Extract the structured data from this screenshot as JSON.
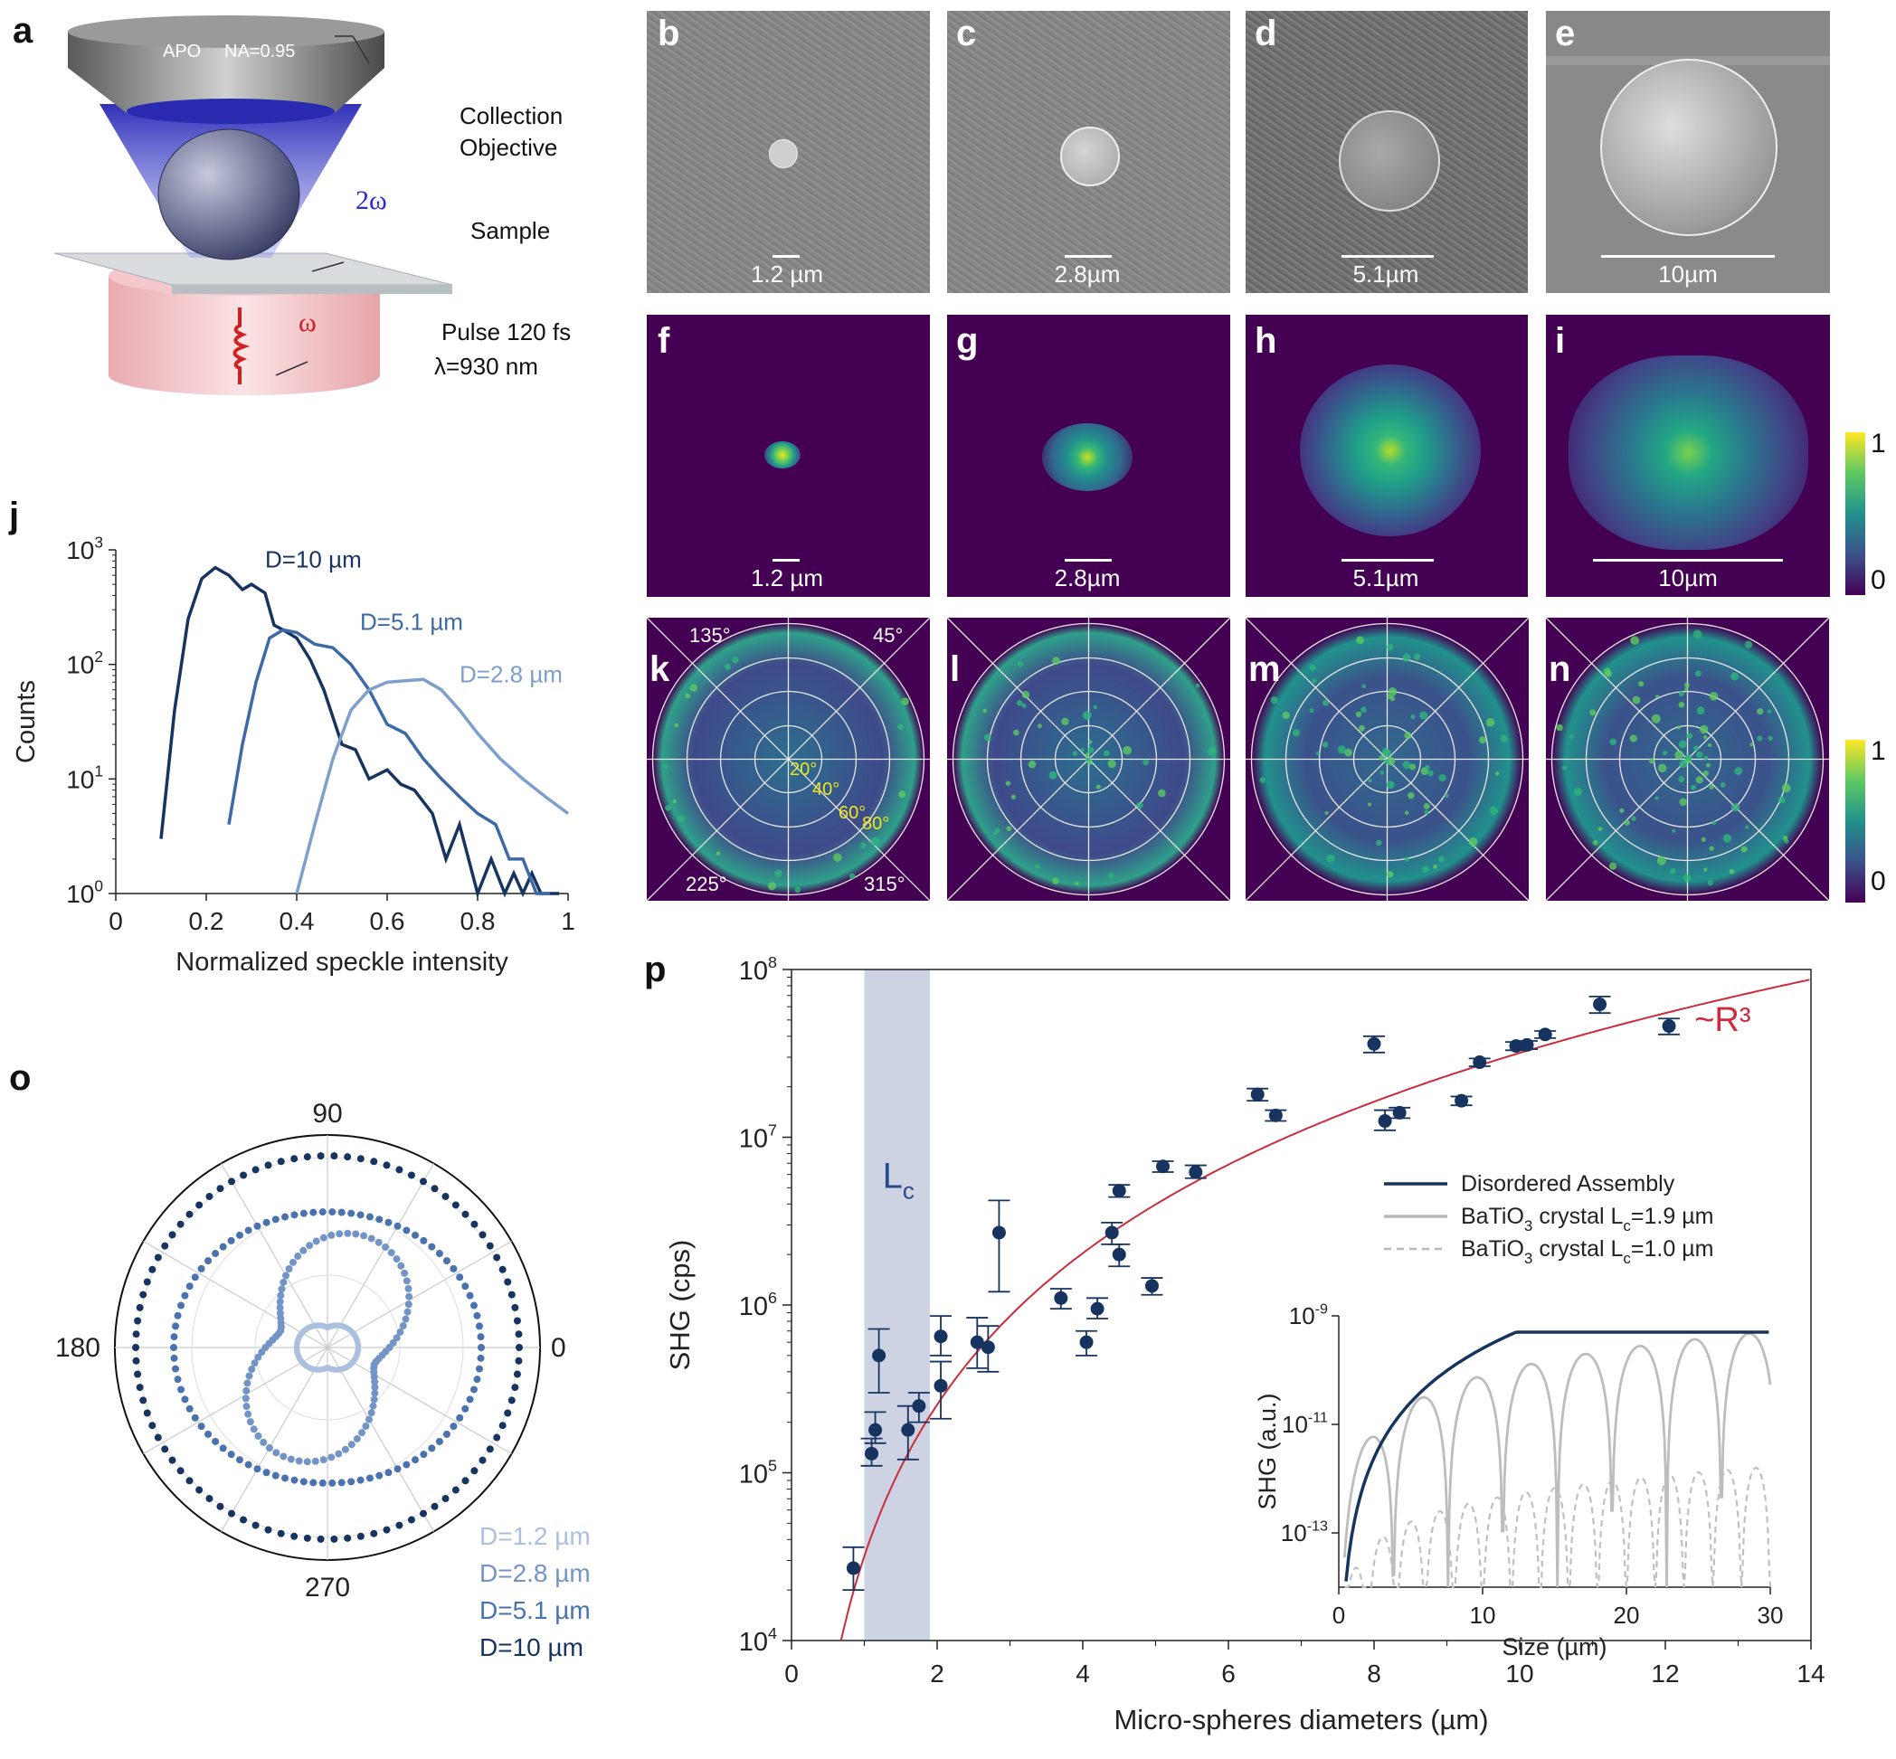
{
  "panel_letters": {
    "a": "a",
    "b": "b",
    "c": "c",
    "d": "d",
    "e": "e",
    "f": "f",
    "g": "g",
    "h": "h",
    "i": "i",
    "j": "j",
    "k": "k",
    "l": "l",
    "m": "m",
    "n": "n",
    "o": "o",
    "p": "p"
  },
  "panel_a": {
    "objective_label": "APO",
    "na_label": "NA=0.95",
    "collection_1": "Collection",
    "collection_2": "Objective",
    "two_omega": "2ω",
    "sample": "Sample",
    "omega": "ω",
    "pulse": "Pulse 120 fs",
    "lambda": "λ=930 nm"
  },
  "scalebars": {
    "b": "1.2 µm",
    "c": "2.8µm",
    "d": "5.1µm",
    "e": "10µm",
    "f": "1.2 µm",
    "g": "2.8µm",
    "h": "5.1µm",
    "i": "10µm"
  },
  "colorbar": {
    "max": "1",
    "min": "0"
  },
  "polar_k": {
    "a135": "135°",
    "a45": "45°",
    "a225": "225°",
    "a315": "315°",
    "r20": "20°",
    "r40": "40°",
    "r60": "60°",
    "r80": "80°"
  },
  "chart_data": [
    {
      "panel": "j",
      "type": "line",
      "xlabel": "Normalized speckle intensity",
      "ylabel": "Counts",
      "xlim": [
        0,
        1
      ],
      "ylim": [
        1,
        1000
      ],
      "yscale": "log",
      "xticks": [
        "0",
        "0.2",
        "0.4",
        "0.6",
        "0.8",
        "1"
      ],
      "yticks": [
        "10^0",
        "10^1",
        "10^2",
        "10^3"
      ],
      "series": [
        {
          "name": "D=10 µm",
          "color": "#17335f",
          "x": [
            0.1,
            0.13,
            0.16,
            0.19,
            0.22,
            0.25,
            0.28,
            0.3,
            0.33,
            0.35,
            0.37,
            0.4,
            0.43,
            0.46,
            0.5,
            0.53,
            0.56,
            0.6,
            0.63,
            0.66,
            0.7,
            0.73,
            0.76,
            0.8,
            0.83,
            0.86,
            0.88,
            0.9,
            0.92,
            0.94,
            0.96,
            0.98
          ],
          "y": [
            3,
            40,
            250,
            560,
            700,
            600,
            450,
            500,
            420,
            220,
            200,
            170,
            110,
            60,
            20,
            18,
            10,
            12,
            9,
            8,
            5,
            2,
            4,
            1,
            2,
            1,
            1.5,
            1,
            1.5,
            1,
            1,
            1
          ]
        },
        {
          "name": "D=5.1 µm",
          "color": "#3d6aa6",
          "x": [
            0.25,
            0.28,
            0.31,
            0.34,
            0.37,
            0.4,
            0.44,
            0.48,
            0.52,
            0.56,
            0.6,
            0.64,
            0.68,
            0.72,
            0.76,
            0.8,
            0.84,
            0.87,
            0.9,
            0.93,
            0.96
          ],
          "y": [
            4,
            20,
            70,
            170,
            200,
            190,
            150,
            140,
            100,
            60,
            30,
            25,
            15,
            10,
            7,
            5,
            4,
            2,
            2,
            1,
            1
          ]
        },
        {
          "name": "D=2.8 µm",
          "color": "#7e9fcb",
          "x": [
            0.4,
            0.44,
            0.48,
            0.52,
            0.56,
            0.6,
            0.64,
            0.68,
            0.72,
            0.76,
            0.8,
            0.85,
            0.9,
            0.95,
            1.0
          ],
          "y": [
            1,
            4,
            15,
            40,
            60,
            70,
            72,
            74,
            60,
            40,
            25,
            15,
            10,
            7,
            5
          ]
        }
      ]
    },
    {
      "panel": "o",
      "type": "polar",
      "angle_labels": [
        "90",
        "180",
        "0",
        "270"
      ],
      "series": [
        {
          "name": "D=1.2  µm",
          "color": "#aac0de"
        },
        {
          "name": "D=2.8  µm",
          "color": "#7394c6"
        },
        {
          "name": "D=5.1  µm",
          "color": "#4a72ae"
        },
        {
          "name": "D=10   µm",
          "color": "#17335f"
        }
      ]
    },
    {
      "panel": "p",
      "type": "scatter",
      "xlabel": "Micro-spheres diameters (µm)",
      "ylabel": "SHG (cps)",
      "xlim": [
        0,
        14
      ],
      "ylim": [
        10000,
        100000000
      ],
      "yscale": "log",
      "xticks": [
        "0",
        "2",
        "4",
        "6",
        "8",
        "10",
        "12",
        "14"
      ],
      "yticks": [
        "10^4",
        "10^5",
        "10^6",
        "10^7",
        "10^8"
      ],
      "band_label": "Lc",
      "band_range": [
        1.0,
        1.9
      ],
      "fit_label": "~R³",
      "points": [
        {
          "x": 0.85,
          "y": 27000,
          "lo": 20000,
          "hi": 36000
        },
        {
          "x": 1.1,
          "y": 130000,
          "lo": 110000,
          "hi": 160000
        },
        {
          "x": 1.15,
          "y": 180000,
          "lo": 150000,
          "hi": 230000
        },
        {
          "x": 1.2,
          "y": 500000,
          "lo": 300000,
          "hi": 720000
        },
        {
          "x": 1.6,
          "y": 180000,
          "lo": 120000,
          "hi": 250000
        },
        {
          "x": 1.75,
          "y": 250000,
          "lo": 200000,
          "hi": 300000
        },
        {
          "x": 2.05,
          "y": 330000,
          "lo": 210000,
          "hi": 460000
        },
        {
          "x": 2.05,
          "y": 650000,
          "lo": 500000,
          "hi": 860000
        },
        {
          "x": 2.55,
          "y": 600000,
          "lo": 420000,
          "hi": 840000
        },
        {
          "x": 2.7,
          "y": 560000,
          "lo": 400000,
          "hi": 750000
        },
        {
          "x": 2.85,
          "y": 2700000,
          "lo": 1200000,
          "hi": 4200000
        },
        {
          "x": 3.7,
          "y": 1100000,
          "lo": 950000,
          "hi": 1250000
        },
        {
          "x": 4.05,
          "y": 600000,
          "lo": 500000,
          "hi": 700000
        },
        {
          "x": 4.2,
          "y": 950000,
          "lo": 830000,
          "hi": 1100000
        },
        {
          "x": 4.4,
          "y": 2700000,
          "lo": 2300000,
          "hi": 3100000
        },
        {
          "x": 4.5,
          "y": 2000000,
          "lo": 1700000,
          "hi": 2300000
        },
        {
          "x": 4.5,
          "y": 4800000,
          "lo": 4400000,
          "hi": 5200000
        },
        {
          "x": 4.95,
          "y": 1300000,
          "lo": 1150000,
          "hi": 1450000
        },
        {
          "x": 5.1,
          "y": 6700000,
          "lo": 6200000,
          "hi": 7200000
        },
        {
          "x": 5.55,
          "y": 6200000,
          "lo": 5700000,
          "hi": 6800000
        },
        {
          "x": 6.4,
          "y": 18000000,
          "lo": 16500000,
          "hi": 19500000
        },
        {
          "x": 6.65,
          "y": 13500000,
          "lo": 12500000,
          "hi": 14500000
        },
        {
          "x": 8.0,
          "y": 36000000,
          "lo": 32000000,
          "hi": 40000000
        },
        {
          "x": 8.15,
          "y": 12500000,
          "lo": 11000000,
          "hi": 14500000
        },
        {
          "x": 8.35,
          "y": 14000000,
          "lo": 13000000,
          "hi": 15000000
        },
        {
          "x": 9.2,
          "y": 16500000,
          "lo": 15500000,
          "hi": 17500000
        },
        {
          "x": 9.45,
          "y": 28000000,
          "lo": 26500000,
          "hi": 29500000
        },
        {
          "x": 9.95,
          "y": 35000000,
          "lo": 33000000,
          "hi": 37000000
        },
        {
          "x": 10.1,
          "y": 35500000,
          "lo": 33500000,
          "hi": 37500000
        },
        {
          "x": 10.35,
          "y": 41000000,
          "lo": 39000000,
          "hi": 43000000
        },
        {
          "x": 11.1,
          "y": 62000000,
          "lo": 55000000,
          "hi": 69000000
        },
        {
          "x": 12.05,
          "y": 46000000,
          "lo": 41000000,
          "hi": 51000000
        }
      ]
    },
    {
      "panel": "p-inset",
      "type": "line",
      "xlabel": "Size (µm)",
      "ylabel": "SHG  (a.u.)",
      "xlim": [
        0,
        30
      ],
      "ylim": [
        1e-14,
        1e-09
      ],
      "yscale": "log",
      "xticks": [
        "0",
        "10",
        "20",
        "30"
      ],
      "yticks": [
        "10^-9",
        "10^-11",
        "10^-13"
      ],
      "series": [
        {
          "name": "Disordered Assembly",
          "color": "#17335f",
          "style": "solid"
        },
        {
          "name": "BaTiO",
          "sub": "3",
          "suffix": " crystal L",
          "csub": "c",
          "value": "=1.9 µm",
          "color": "#b8b8b8",
          "style": "solid"
        },
        {
          "name": "BaTiO",
          "sub": "3",
          "suffix": " crystal L",
          "csub": "c",
          "value": "=1.0 µm",
          "color": "#b8b8b8",
          "style": "dashed"
        }
      ]
    }
  ]
}
